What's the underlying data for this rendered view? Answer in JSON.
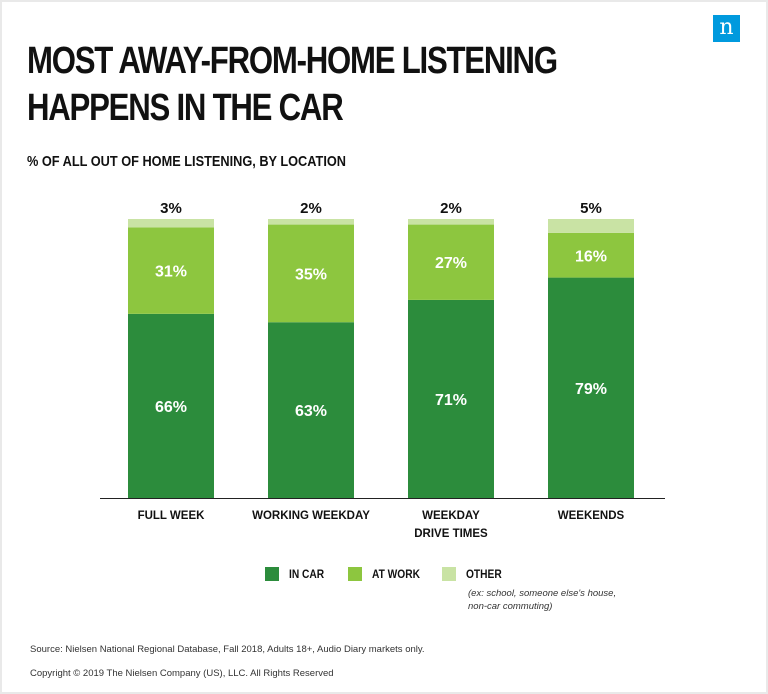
{
  "logo": {
    "text": "n"
  },
  "header": {
    "title_line1": "MOST AWAY-FROM-HOME LISTENING",
    "title_line2": "HAPPENS IN THE CAR",
    "subtitle": "% OF ALL OUT OF HOME LISTENING, BY LOCATION"
  },
  "colors": {
    "in_car": "#2c8c3c",
    "at_work": "#8dc63f",
    "other": "#c9e3a4",
    "logo": "#009ade"
  },
  "chart_data": {
    "type": "bar",
    "stacked": true,
    "title": "MOST AWAY-FROM-HOME LISTENING HAPPENS IN THE CAR",
    "subtitle": "% OF ALL OUT OF HOME LISTENING, BY LOCATION",
    "categories": [
      [
        "FULL WEEK"
      ],
      [
        "WORKING WEEKDAY"
      ],
      [
        "WEEKDAY",
        "DRIVE TIMES"
      ],
      [
        "WEEKENDS"
      ]
    ],
    "series": [
      {
        "name": "IN CAR",
        "values": [
          66,
          63,
          71,
          79
        ],
        "labels": [
          "66%",
          "63%",
          "71%",
          "79%"
        ]
      },
      {
        "name": "AT WORK",
        "values": [
          31,
          35,
          27,
          16
        ],
        "labels": [
          "31%",
          "35%",
          "27%",
          "16%"
        ]
      },
      {
        "name": "OTHER",
        "values": [
          3,
          2,
          2,
          5
        ],
        "labels": [
          "3%",
          "2%",
          "2%",
          "5%"
        ]
      }
    ],
    "ylim": [
      0,
      100
    ],
    "grid": false,
    "legend_position": "bottom"
  },
  "legend": {
    "items": [
      "IN CAR",
      "AT WORK",
      "OTHER"
    ],
    "note_line1": "(ex: school, someone else's house,",
    "note_line2": "non-car commuting)"
  },
  "footer": {
    "source": "Source: Nielsen National Regional Database, Fall 2018, Adults 18+, Audio Diary markets only.",
    "copyright": "Copyright © 2019 The Nielsen Company (US), LLC. All Rights Reserved"
  }
}
